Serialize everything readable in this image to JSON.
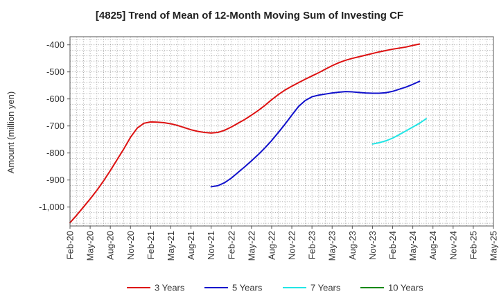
{
  "chart_data": {
    "type": "line",
    "title": "[4825]  Trend of Mean of 12-Month Moving Sum of Investing CF",
    "xlabel": "",
    "ylabel": "Amount (million yen)",
    "ylim": [
      -1070,
      -370
    ],
    "yticks": [
      -400,
      -500,
      -600,
      -700,
      -800,
      -900,
      -1000
    ],
    "ytick_labels": [
      "-400",
      "-500",
      "-600",
      "-700",
      "-800",
      "-900",
      "-1,000"
    ],
    "xlim": [
      "2020-02",
      "2025-05"
    ],
    "xticks": [
      "2020-02",
      "2020-05",
      "2020-08",
      "2020-11",
      "2021-02",
      "2021-05",
      "2021-08",
      "2021-11",
      "2022-02",
      "2022-05",
      "2022-08",
      "2022-11",
      "2023-02",
      "2023-05",
      "2023-08",
      "2023-11",
      "2024-02",
      "2024-05",
      "2024-08",
      "2024-11",
      "2025-02",
      "2025-05"
    ],
    "xtick_labels": [
      "Feb-20",
      "May-20",
      "Aug-20",
      "Nov-20",
      "Feb-21",
      "May-21",
      "Aug-21",
      "Nov-21",
      "Feb-22",
      "May-22",
      "Aug-22",
      "Nov-22",
      "Feb-23",
      "May-23",
      "Aug-23",
      "Nov-23",
      "Feb-24",
      "May-24",
      "Aug-24",
      "Nov-24",
      "Feb-25",
      "May-25"
    ],
    "grid": true,
    "legend_position": "bottom",
    "series": [
      {
        "name": "3 Years",
        "color": "#dd1111",
        "points": [
          [
            "2020-02",
            -1058
          ],
          [
            "2020-03",
            -1030
          ],
          [
            "2020-04",
            -1000
          ],
          [
            "2020-05",
            -970
          ],
          [
            "2020-06",
            -938
          ],
          [
            "2020-07",
            -903
          ],
          [
            "2020-08",
            -865
          ],
          [
            "2020-09",
            -825
          ],
          [
            "2020-10",
            -785
          ],
          [
            "2020-11",
            -742
          ],
          [
            "2020-12",
            -708
          ],
          [
            "2021-01",
            -690
          ],
          [
            "2021-02",
            -685
          ],
          [
            "2021-03",
            -686
          ],
          [
            "2021-04",
            -688
          ],
          [
            "2021-05",
            -692
          ],
          [
            "2021-06",
            -698
          ],
          [
            "2021-07",
            -706
          ],
          [
            "2021-08",
            -714
          ],
          [
            "2021-09",
            -720
          ],
          [
            "2021-10",
            -724
          ],
          [
            "2021-11",
            -726
          ],
          [
            "2021-12",
            -724
          ],
          [
            "2022-01",
            -716
          ],
          [
            "2022-02",
            -704
          ],
          [
            "2022-03",
            -690
          ],
          [
            "2022-04",
            -676
          ],
          [
            "2022-05",
            -660
          ],
          [
            "2022-06",
            -643
          ],
          [
            "2022-07",
            -624
          ],
          [
            "2022-08",
            -603
          ],
          [
            "2022-09",
            -584
          ],
          [
            "2022-10",
            -567
          ],
          [
            "2022-11",
            -553
          ],
          [
            "2022-12",
            -540
          ],
          [
            "2023-01",
            -527
          ],
          [
            "2023-02",
            -515
          ],
          [
            "2023-03",
            -503
          ],
          [
            "2023-04",
            -490
          ],
          [
            "2023-05",
            -477
          ],
          [
            "2023-06",
            -466
          ],
          [
            "2023-07",
            -457
          ],
          [
            "2023-08",
            -450
          ],
          [
            "2023-09",
            -444
          ],
          [
            "2023-10",
            -438
          ],
          [
            "2023-11",
            -432
          ],
          [
            "2023-12",
            -426
          ],
          [
            "2024-01",
            -421
          ],
          [
            "2024-02",
            -416
          ],
          [
            "2024-03",
            -412
          ],
          [
            "2024-04",
            -408
          ],
          [
            "2024-05",
            -402
          ],
          [
            "2024-06",
            -397
          ]
        ]
      },
      {
        "name": "5 Years",
        "color": "#1111cc",
        "points": [
          [
            "2021-11",
            -925
          ],
          [
            "2021-12",
            -921
          ],
          [
            "2022-01",
            -910
          ],
          [
            "2022-02",
            -893
          ],
          [
            "2022-03",
            -872
          ],
          [
            "2022-04",
            -851
          ],
          [
            "2022-05",
            -829
          ],
          [
            "2022-06",
            -806
          ],
          [
            "2022-07",
            -781
          ],
          [
            "2022-08",
            -754
          ],
          [
            "2022-09",
            -724
          ],
          [
            "2022-10",
            -693
          ],
          [
            "2022-11",
            -660
          ],
          [
            "2022-12",
            -628
          ],
          [
            "2023-01",
            -606
          ],
          [
            "2023-02",
            -592
          ],
          [
            "2023-03",
            -586
          ],
          [
            "2023-04",
            -582
          ],
          [
            "2023-05",
            -578
          ],
          [
            "2023-06",
            -575
          ],
          [
            "2023-07",
            -573
          ],
          [
            "2023-08",
            -574
          ],
          [
            "2023-09",
            -576
          ],
          [
            "2023-10",
            -578
          ],
          [
            "2023-11",
            -579
          ],
          [
            "2023-12",
            -579
          ],
          [
            "2024-01",
            -577
          ],
          [
            "2024-02",
            -572
          ],
          [
            "2024-03",
            -564
          ],
          [
            "2024-04",
            -556
          ],
          [
            "2024-05",
            -546
          ],
          [
            "2024-06",
            -535
          ]
        ]
      },
      {
        "name": "7 Years",
        "color": "#22e5e5",
        "points": [
          [
            "2023-11",
            -767
          ],
          [
            "2023-12",
            -762
          ],
          [
            "2024-01",
            -755
          ],
          [
            "2024-02",
            -745
          ],
          [
            "2024-03",
            -732
          ],
          [
            "2024-04",
            -718
          ],
          [
            "2024-05",
            -704
          ],
          [
            "2024-06",
            -690
          ],
          [
            "2024-07",
            -673
          ]
        ]
      },
      {
        "name": "10 Years",
        "color": "#118811",
        "points": []
      }
    ]
  }
}
